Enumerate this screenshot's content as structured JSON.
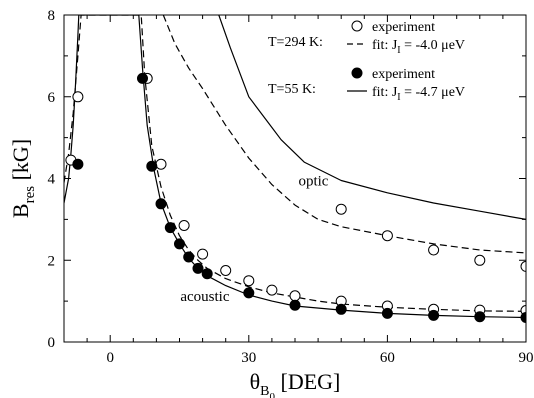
{
  "chart_data": {
    "type": "scatter",
    "title": "",
    "xlabel": {
      "main": "θ",
      "sub": "B",
      "subsub": "0",
      "unit": "[DEG]"
    },
    "ylabel": {
      "main": "B",
      "sub": "res",
      "unit": "[kG]"
    },
    "xlim": [
      -10,
      90
    ],
    "ylim": [
      0,
      8
    ],
    "xticks": [
      0,
      30,
      60,
      90
    ],
    "yticks": [
      0,
      2,
      4,
      6,
      8
    ],
    "grid": false,
    "legend_position": "top-right",
    "legend": [
      {
        "group_label": "T=294 K:",
        "marker_label": "experiment",
        "line_label": "fit: J",
        "line_label_sub": "I",
        "line_label_rest": " = -4.0 μeV"
      },
      {
        "group_label": "T=55 K:",
        "marker_label": "experiment",
        "line_label": "fit: J",
        "line_label_sub": "I",
        "line_label_rest": " = -4.7 μeV"
      }
    ],
    "annotations": [
      {
        "text": "optic",
        "x": 44,
        "y": 3.95
      },
      {
        "text": "acoustic",
        "x": 20.5,
        "y": 1.12
      }
    ],
    "series": [
      {
        "name": "experiment (T=294 K)",
        "kind": "scatter",
        "marker": "open-circle",
        "points": [
          [
            -8.5,
            4.45
          ],
          [
            -7,
            6.0
          ],
          [
            8,
            6.45
          ],
          [
            11,
            4.35
          ],
          [
            16,
            2.85
          ],
          [
            20,
            2.15
          ],
          [
            25,
            1.75
          ],
          [
            30,
            1.5
          ],
          [
            35,
            1.27
          ],
          [
            40,
            1.13
          ],
          [
            50,
            1.0
          ],
          [
            50,
            3.25
          ],
          [
            60,
            0.88
          ],
          [
            60,
            2.6
          ],
          [
            70,
            0.8
          ],
          [
            70,
            2.25
          ],
          [
            80,
            0.78
          ],
          [
            80,
            2.0
          ],
          [
            90,
            0.77
          ],
          [
            90,
            1.85
          ]
        ]
      },
      {
        "name": "experiment (T=55 K)",
        "kind": "scatter",
        "marker": "filled-circle",
        "points": [
          [
            -7,
            4.35
          ],
          [
            7,
            6.45
          ],
          [
            9,
            4.3
          ],
          [
            11,
            3.38
          ],
          [
            13,
            2.8
          ],
          [
            15,
            2.4
          ],
          [
            17,
            2.08
          ],
          [
            19,
            1.8
          ],
          [
            21,
            1.67
          ],
          [
            30,
            1.2
          ],
          [
            40,
            0.9
          ],
          [
            50,
            0.8
          ],
          [
            60,
            0.7
          ],
          [
            70,
            0.65
          ],
          [
            80,
            0.62
          ],
          [
            90,
            0.6
          ]
        ]
      },
      {
        "name": "fit J_I = -4.0 μeV (T=294 K) acoustic",
        "kind": "line",
        "style": "dashed",
        "points": [
          [
            -10,
            3.9
          ],
          [
            -9,
            4.6
          ],
          [
            -8,
            5.6
          ],
          [
            -7,
            7.0
          ],
          [
            -6.3,
            8.0
          ],
          [
            6.7,
            8.0
          ],
          [
            7.5,
            6.5
          ],
          [
            9,
            4.8
          ],
          [
            11,
            3.8
          ],
          [
            13,
            3.1
          ],
          [
            15,
            2.6
          ],
          [
            17,
            2.25
          ],
          [
            19,
            2.0
          ],
          [
            21,
            1.8
          ],
          [
            25,
            1.55
          ],
          [
            30,
            1.35
          ],
          [
            35,
            1.2
          ],
          [
            40,
            1.1
          ],
          [
            45,
            1.0
          ],
          [
            50,
            0.93
          ],
          [
            60,
            0.85
          ],
          [
            70,
            0.8
          ],
          [
            80,
            0.76
          ],
          [
            90,
            0.75
          ]
        ]
      },
      {
        "name": "fit J_I = -4.0 μeV (T=294 K) optic",
        "kind": "line",
        "style": "dashed",
        "points": [
          [
            11.5,
            8.0
          ],
          [
            14,
            7.3
          ],
          [
            17,
            6.7
          ],
          [
            20,
            6.2
          ],
          [
            25,
            5.3
          ],
          [
            30,
            4.5
          ],
          [
            35,
            3.85
          ],
          [
            40,
            3.35
          ],
          [
            45,
            3.0
          ],
          [
            50,
            2.82
          ],
          [
            60,
            2.6
          ],
          [
            70,
            2.4
          ],
          [
            80,
            2.25
          ],
          [
            90,
            2.18
          ]
        ]
      },
      {
        "name": "fit J_I = -4.7 μeV (T=55 K) acoustic",
        "kind": "line",
        "style": "solid",
        "points": [
          [
            -10,
            3.4
          ],
          [
            -9,
            4.0
          ],
          [
            -8.5,
            4.6
          ],
          [
            -8,
            5.3
          ],
          [
            -7.5,
            6.3
          ],
          [
            -7,
            7.5
          ],
          [
            -6.8,
            8.0
          ],
          [
            6.2,
            8.0
          ],
          [
            7,
            6.7
          ],
          [
            8,
            5.3
          ],
          [
            9.5,
            4.2
          ],
          [
            11,
            3.4
          ],
          [
            13,
            2.8
          ],
          [
            15,
            2.4
          ],
          [
            17,
            2.05
          ],
          [
            19,
            1.8
          ],
          [
            21,
            1.62
          ],
          [
            25,
            1.38
          ],
          [
            30,
            1.15
          ],
          [
            35,
            1.0
          ],
          [
            40,
            0.88
          ],
          [
            50,
            0.78
          ],
          [
            60,
            0.7
          ],
          [
            70,
            0.65
          ],
          [
            80,
            0.62
          ],
          [
            90,
            0.6
          ]
        ]
      },
      {
        "name": "fit J_I = -4.7 μeV (T=55 K) optic",
        "kind": "line",
        "style": "solid",
        "points": [
          [
            23.5,
            8.0
          ],
          [
            26,
            7.2
          ],
          [
            30,
            6.0
          ],
          [
            37,
            4.95
          ],
          [
            42,
            4.4
          ],
          [
            50,
            3.95
          ],
          [
            60,
            3.65
          ],
          [
            70,
            3.4
          ],
          [
            80,
            3.2
          ],
          [
            90,
            3.0
          ]
        ]
      }
    ]
  }
}
